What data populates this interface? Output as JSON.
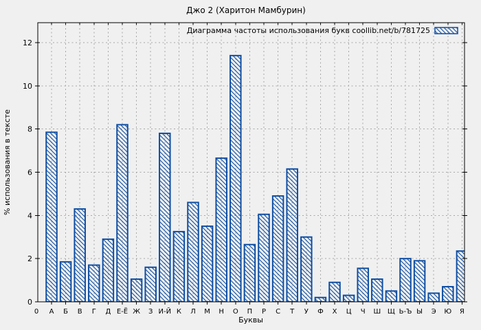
{
  "title": "Джо 2 (Харитон Мамбурин)",
  "colors": {
    "background": "#f0f0f0",
    "bar": "#0e4ea3",
    "frame": "#000000",
    "grid": "#a6a6a6",
    "text": "#000000"
  },
  "chart_data": {
    "type": "bar",
    "title": "Джо 2 (Харитон Мамбурин)",
    "xlabel": "Буквы",
    "ylabel": "% использования в тексте",
    "origin_label": "0",
    "categories": [
      "А",
      "Б",
      "В",
      "Г",
      "Д",
      "Е-Ё",
      "Ж",
      "З",
      "И-Й",
      "К",
      "Л",
      "М",
      "Н",
      "О",
      "П",
      "Р",
      "С",
      "Т",
      "У",
      "Ф",
      "Х",
      "Ц",
      "Ч",
      "Ш",
      "Щ",
      "Ь-Ъ",
      "Ы",
      "Э",
      "Ю",
      "Я"
    ],
    "series": [
      {
        "name": "Диаграмма частоты использования букв coollib.net/b/781725",
        "values": [
          7.85,
          1.85,
          4.3,
          1.7,
          2.9,
          8.2,
          1.05,
          1.6,
          7.8,
          3.25,
          4.6,
          3.5,
          6.65,
          11.4,
          2.65,
          4.05,
          4.9,
          6.15,
          3.0,
          0.2,
          0.9,
          0.3,
          1.55,
          1.05,
          0.5,
          2.0,
          1.9,
          0.4,
          0.7,
          2.35
        ]
      }
    ],
    "yticks": [
      0,
      2,
      4,
      6,
      8,
      10,
      12
    ],
    "ylim": [
      0,
      12.9
    ],
    "grid": true,
    "hatch": "diagonal-backslash",
    "legend_position": "top-right-inside"
  }
}
